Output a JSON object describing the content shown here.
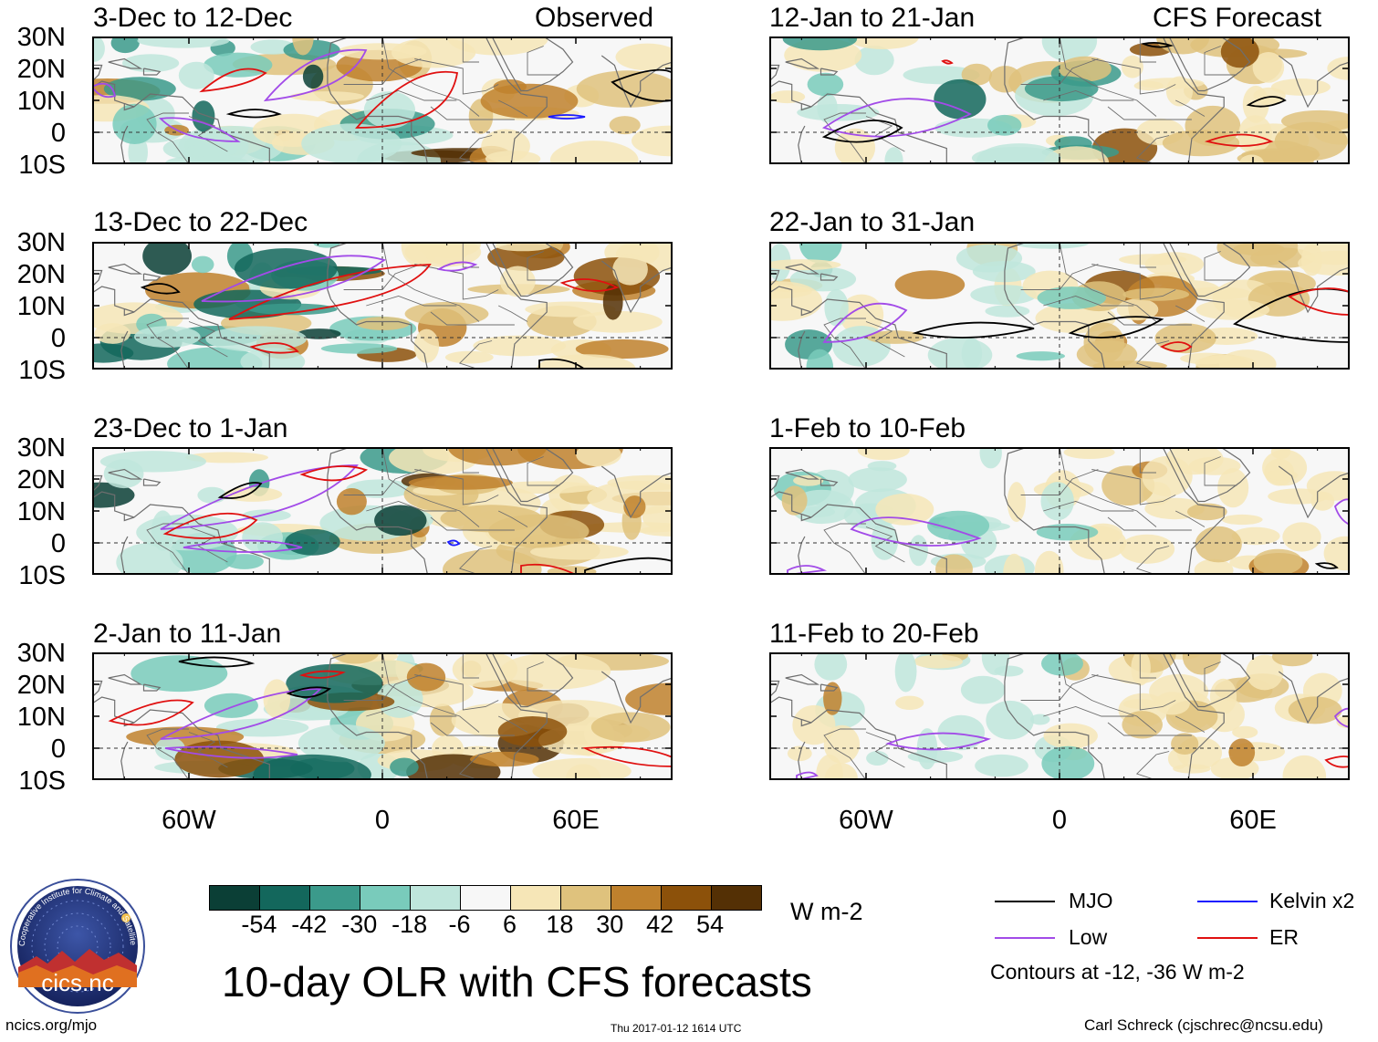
{
  "header": {
    "left_tag": "Observed",
    "right_tag": "CFS Forecast"
  },
  "observed_panels": [
    {
      "title": "3-Dec to 12-Dec"
    },
    {
      "title": "13-Dec to 22-Dec"
    },
    {
      "title": "23-Dec to 1-Jan"
    },
    {
      "title": "2-Jan to 11-Jan"
    }
  ],
  "forecast_panels": [
    {
      "title": "12-Jan to 21-Jan"
    },
    {
      "title": "22-Jan to 31-Jan"
    },
    {
      "title": "1-Feb to 10-Feb"
    },
    {
      "title": "11-Feb to 20-Feb"
    }
  ],
  "lat_labels": [
    "30N",
    "20N",
    "10N",
    "0",
    "10S"
  ],
  "lon_labels": [
    "60W",
    "0",
    "60E"
  ],
  "colorbar": {
    "colors": [
      "#0b3f36",
      "#13675c",
      "#3b9a8b",
      "#79cbbb",
      "#bfe6dc",
      "#f7f7f7",
      "#f6e6b7",
      "#dfc27d",
      "#bf812d",
      "#8c510a",
      "#543005"
    ],
    "ticks": [
      "-54",
      "-42",
      "-30",
      "-18",
      "-6",
      "6",
      "18",
      "30",
      "42",
      "54"
    ],
    "units": "W m-2"
  },
  "legend": {
    "items": [
      {
        "label": "MJO",
        "color": "#000000"
      },
      {
        "label": "Kelvin x2",
        "color": "#1a1aff"
      },
      {
        "label": "Low",
        "color": "#a24be8"
      },
      {
        "label": "ER",
        "color": "#e01010"
      }
    ],
    "note": "Contours at -12, -36 W m-2"
  },
  "footer": {
    "main_title": "10-day OLR with CFS forecasts",
    "url": "ncics.org/mjo",
    "timestamp": "Thu 2017-01-12 1614 UTC",
    "author": "Carl Schreck (cjschrec@ncsu.edu)"
  },
  "logo": {
    "text": "cics.nc",
    "ring_text": "Cooperative Institute for Climate and Satellites"
  }
}
